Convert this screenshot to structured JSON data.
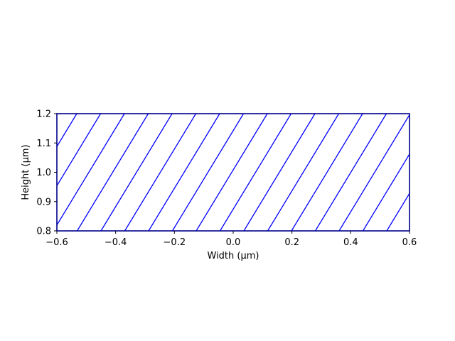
{
  "chart_data": {
    "type": "area",
    "title": "",
    "xlabel": "Width (µm)",
    "ylabel": "Height (µm)",
    "xlim": [
      -0.6,
      0.6
    ],
    "ylim": [
      0.8,
      1.2
    ],
    "x_ticks": [
      -0.6,
      -0.4,
      -0.2,
      0.0,
      0.2,
      0.4,
      0.6
    ],
    "x_tick_labels": [
      "−0.6",
      "−0.4",
      "−0.2",
      "0.0",
      "0.2",
      "0.4",
      "0.6"
    ],
    "y_ticks": [
      0.8,
      0.9,
      1.0,
      1.1,
      1.2
    ],
    "y_tick_labels": [
      "0.8",
      "0.9",
      "1.0",
      "1.1",
      "1.2"
    ],
    "grid": false,
    "shapes": [
      {
        "kind": "rectangle",
        "x": [
          -0.6,
          0.6
        ],
        "y": [
          0.8,
          1.2
        ],
        "fill": "none",
        "hatch": "diagonal",
        "hatch_color": "#0000ff",
        "edge_color": "#00008b"
      }
    ]
  }
}
